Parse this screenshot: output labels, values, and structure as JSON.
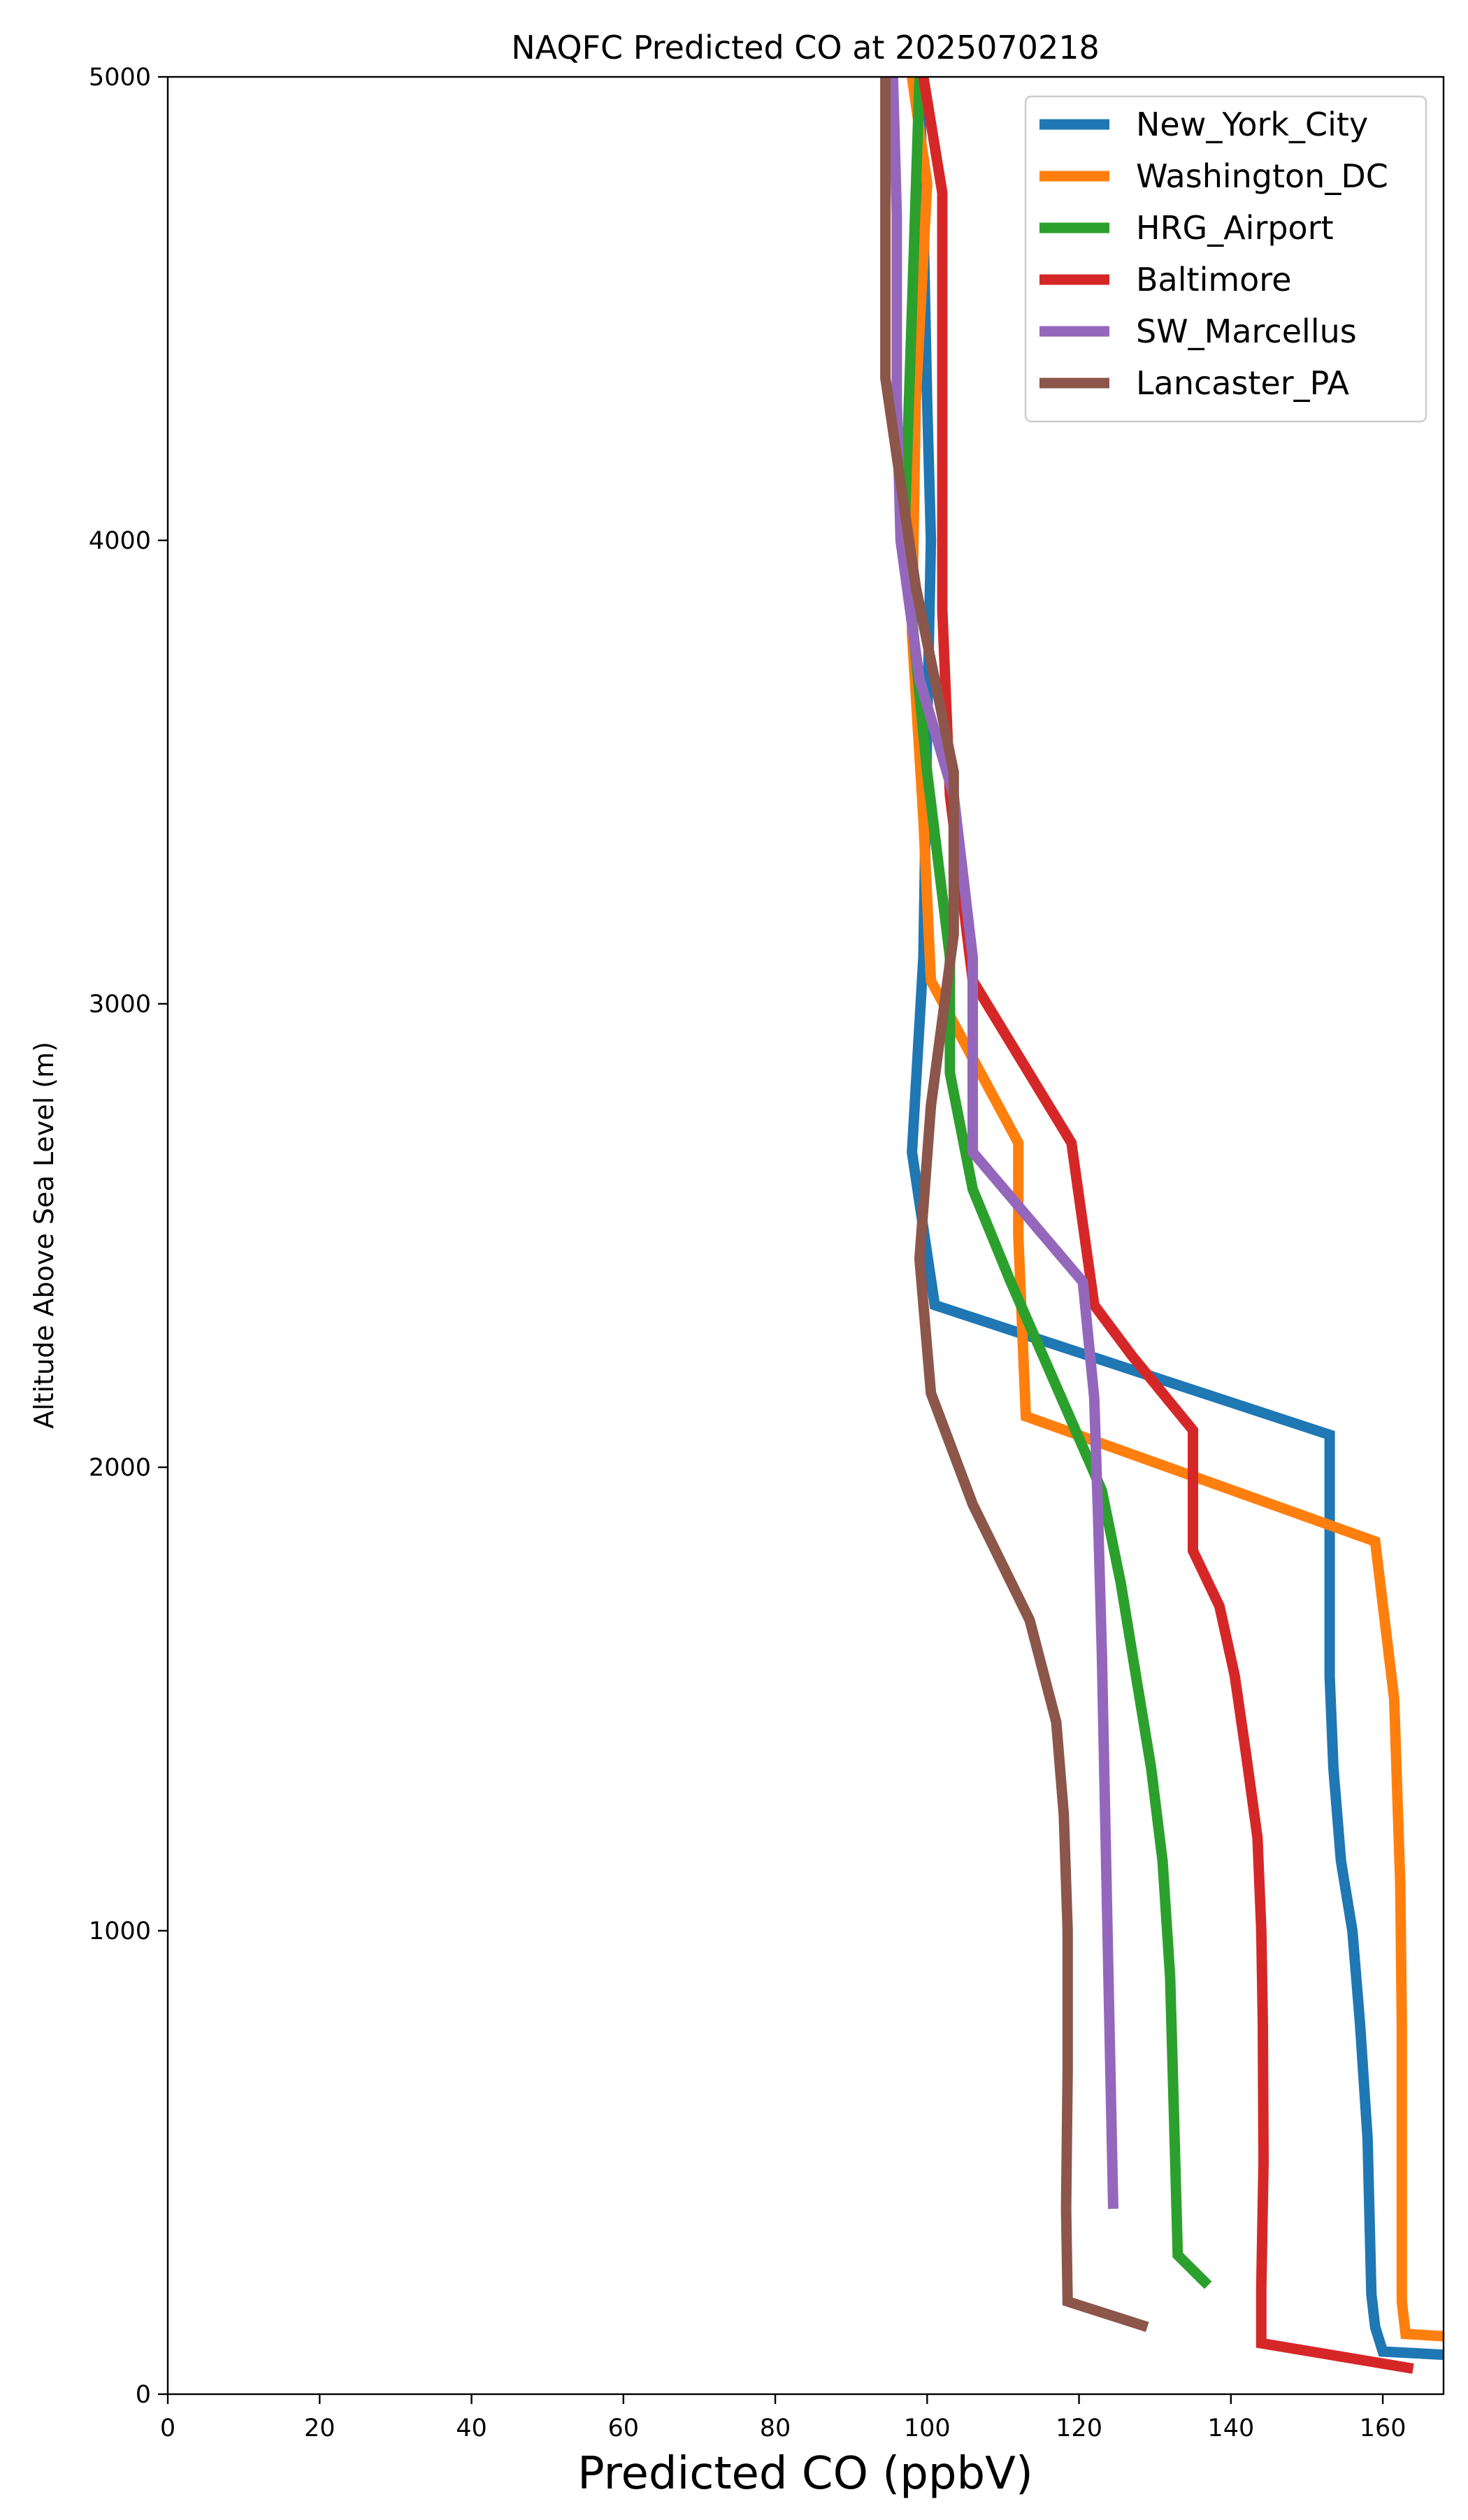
{
  "chart_data": {
    "type": "line",
    "title": "NAQFC Predicted CO at 2025070218",
    "xlabel": "Predicted CO (ppbV)",
    "ylabel": "Altitude Above Sea Level (m)",
    "xlim": [
      0,
      168
    ],
    "ylim": [
      0,
      5000
    ],
    "xticks": [
      0,
      20,
      40,
      60,
      80,
      100,
      120,
      140,
      160
    ],
    "yticks": [
      0,
      1000,
      2000,
      3000,
      4000,
      5000
    ],
    "grid": false,
    "legend_position": "top-right",
    "series": [
      {
        "name": "New_York_City",
        "color": "#1f77b4",
        "points": [
          [
            168,
            85
          ],
          [
            160,
            92
          ],
          [
            159,
            145
          ],
          [
            158.5,
            215
          ],
          [
            158.3,
            350
          ],
          [
            158,
            550
          ],
          [
            157,
            800
          ],
          [
            156,
            1000
          ],
          [
            154.5,
            1150
          ],
          [
            153.5,
            1350
          ],
          [
            153,
            1550
          ],
          [
            153,
            1900
          ],
          [
            153,
            2070
          ],
          [
            101,
            2350
          ],
          [
            98,
            2680
          ],
          [
            99.5,
            3100
          ],
          [
            100,
            3600
          ],
          [
            100.5,
            4000
          ],
          [
            100,
            4300
          ],
          [
            99.5,
            4700
          ],
          [
            99,
            5000
          ]
        ]
      },
      {
        "name": "Washington_DC",
        "color": "#ff7f0e",
        "points": [
          [
            168,
            125
          ],
          [
            163,
            130
          ],
          [
            162.5,
            200
          ],
          [
            162.5,
            500
          ],
          [
            162.5,
            800
          ],
          [
            162.3,
            1100
          ],
          [
            161.5,
            1500
          ],
          [
            159,
            1840
          ],
          [
            113,
            2110
          ],
          [
            112,
            2500
          ],
          [
            112,
            2700
          ],
          [
            100.5,
            3050
          ],
          [
            99.5,
            3400
          ],
          [
            98,
            3800
          ],
          [
            98.5,
            4300
          ],
          [
            100,
            4770
          ],
          [
            98,
            5000
          ]
        ]
      },
      {
        "name": "HRG_Airport",
        "color": "#2ca02c",
        "points": [
          [
            137,
            235
          ],
          [
            133,
            300
          ],
          [
            132.5,
            600
          ],
          [
            132,
            900
          ],
          [
            131,
            1150
          ],
          [
            129.5,
            1350
          ],
          [
            127.5,
            1550
          ],
          [
            125.5,
            1750
          ],
          [
            123,
            1950
          ],
          [
            119,
            2100
          ],
          [
            115,
            2250
          ],
          [
            111,
            2400
          ],
          [
            106,
            2600
          ],
          [
            103,
            2850
          ],
          [
            103,
            3100
          ],
          [
            100,
            3500
          ],
          [
            97,
            4000
          ],
          [
            98,
            4500
          ],
          [
            99,
            5000
          ]
        ]
      },
      {
        "name": "Baltimore",
        "color": "#d62728",
        "points": [
          [
            164,
            55
          ],
          [
            144,
            110
          ],
          [
            144,
            230
          ],
          [
            144.3,
            500
          ],
          [
            144.2,
            800
          ],
          [
            144,
            1000
          ],
          [
            143.5,
            1200
          ],
          [
            142,
            1380
          ],
          [
            140.5,
            1550
          ],
          [
            138.5,
            1700
          ],
          [
            135,
            1820
          ],
          [
            135,
            2080
          ],
          [
            127,
            2240
          ],
          [
            122,
            2350
          ],
          [
            119,
            2700
          ],
          [
            106,
            3050
          ],
          [
            103,
            3450
          ],
          [
            102,
            3850
          ],
          [
            102,
            4300
          ],
          [
            102,
            4750
          ],
          [
            99.5,
            5000
          ]
        ]
      },
      {
        "name": "SW_Marcellus",
        "color": "#9467bd",
        "points": [
          [
            124.5,
            400
          ],
          [
            124,
            800
          ],
          [
            123.5,
            1200
          ],
          [
            123,
            1600
          ],
          [
            122.5,
            1900
          ],
          [
            122,
            2150
          ],
          [
            120.5,
            2400
          ],
          [
            106,
            2680
          ],
          [
            106,
            3100
          ],
          [
            103.5,
            3450
          ],
          [
            99,
            3700
          ],
          [
            96.5,
            4000
          ],
          [
            96,
            4300
          ],
          [
            96,
            4700
          ],
          [
            95.5,
            5000
          ]
        ]
      },
      {
        "name": "Lancaster_PA",
        "color": "#8c564b",
        "points": [
          [
            129,
            145
          ],
          [
            118.5,
            200
          ],
          [
            118.3,
            400
          ],
          [
            118.5,
            700
          ],
          [
            118.5,
            1000
          ],
          [
            118,
            1250
          ],
          [
            117,
            1450
          ],
          [
            113.5,
            1670
          ],
          [
            106,
            1920
          ],
          [
            100.5,
            2160
          ],
          [
            99,
            2450
          ],
          [
            100.5,
            2780
          ],
          [
            103.5,
            3150
          ],
          [
            103.5,
            3500
          ],
          [
            98.5,
            3900
          ],
          [
            94.5,
            4350
          ],
          [
            94.5,
            4700
          ],
          [
            94.5,
            5000
          ]
        ]
      }
    ]
  }
}
